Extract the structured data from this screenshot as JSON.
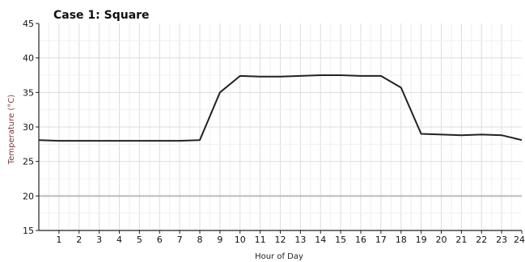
{
  "chart_data": {
    "type": "line",
    "title": "Case 1:  Square",
    "xlabel": "Hour of Day",
    "ylabel": "Temperature (°C)",
    "xlim": [
      0,
      24
    ],
    "ylim": [
      15,
      45
    ],
    "x_ticks": [
      1,
      2,
      3,
      4,
      5,
      6,
      7,
      8,
      9,
      10,
      11,
      12,
      13,
      14,
      15,
      16,
      17,
      18,
      19,
      20,
      21,
      22,
      23,
      24
    ],
    "y_ticks": [
      15,
      20,
      25,
      30,
      35,
      40,
      45
    ],
    "grid": true,
    "reference_line": {
      "y": 20,
      "color": "#bbbbbb"
    },
    "series": [
      {
        "color": "#222222",
        "x": [
          0,
          1,
          2,
          3,
          4,
          5,
          6,
          7,
          8,
          9,
          10,
          11,
          12,
          13,
          14,
          15,
          16,
          17,
          18,
          19,
          20,
          21,
          22,
          23,
          24
        ],
        "values": [
          28.1,
          28.0,
          28.0,
          28.0,
          28.0,
          28.0,
          28.0,
          28.0,
          28.1,
          35.0,
          37.4,
          37.3,
          37.3,
          37.4,
          37.5,
          37.5,
          37.4,
          37.4,
          35.7,
          29.0,
          28.9,
          28.8,
          28.9,
          28.8,
          28.1
        ]
      }
    ]
  }
}
